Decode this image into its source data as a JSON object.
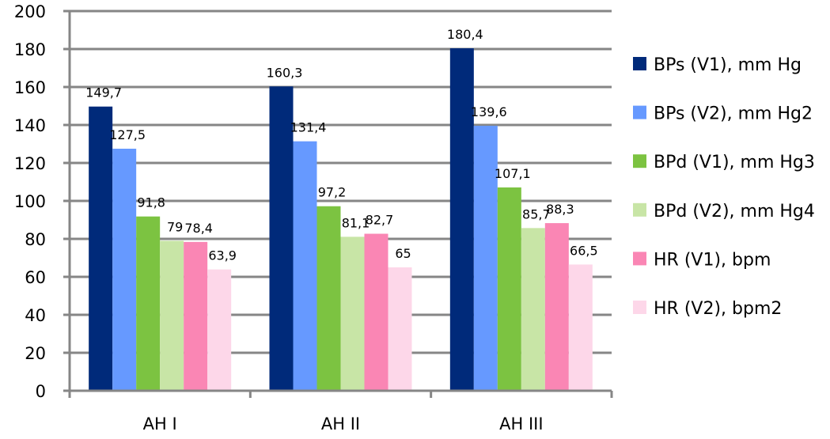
{
  "chart_data": {
    "type": "bar",
    "categories": [
      "AH I",
      "AH II",
      "AH III"
    ],
    "series": [
      {
        "name": "BPs (V1), mm Hg",
        "values": [
          149.7,
          160.3,
          180.4
        ],
        "labels": [
          "149,7",
          "160,3",
          "180,4"
        ],
        "color": "#002a7a"
      },
      {
        "name": "BPs (V2), mm Hg2",
        "values": [
          127.5,
          131.4,
          139.6
        ],
        "labels": [
          "127,5",
          "131,4",
          "139,6"
        ],
        "color": "#6699ff"
      },
      {
        "name": "BPd (V1), mm Hg3",
        "values": [
          91.8,
          97.2,
          107.1
        ],
        "labels": [
          "91,8",
          "97,2",
          "107,1"
        ],
        "color": "#7cc341"
      },
      {
        "name": "BPd (V2), mm Hg4",
        "values": [
          79,
          81.1,
          85.7
        ],
        "labels": [
          "79",
          "81,1",
          "85,7"
        ],
        "color": "#c8e5a6"
      },
      {
        "name": "HR (V1), bpm",
        "values": [
          78.4,
          82.7,
          88.3
        ],
        "labels": [
          "78,4",
          "82,7",
          "88,3"
        ],
        "color": "#fa86b4"
      },
      {
        "name": "HR (V2), bpm2",
        "values": [
          63.9,
          65,
          66.5
        ],
        "labels": [
          "63,9",
          "65",
          "66,5"
        ],
        "color": "#fdd7e9"
      }
    ],
    "ylim": [
      0,
      200
    ],
    "yticks": [
      0,
      20,
      40,
      60,
      80,
      100,
      120,
      140,
      160,
      180,
      200
    ],
    "grid": true,
    "legend": "right",
    "title": "",
    "xlabel": "",
    "ylabel": ""
  }
}
